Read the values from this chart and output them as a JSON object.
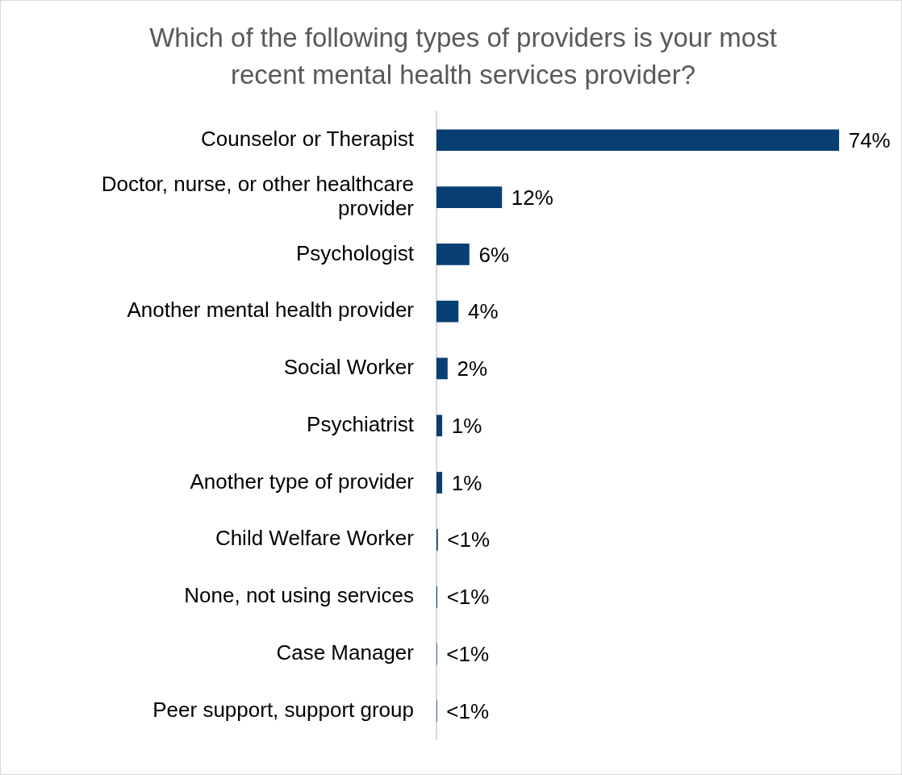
{
  "chart_data": {
    "type": "bar",
    "orientation": "horizontal",
    "title": "Which of the following types of providers is your most recent mental health services provider?",
    "categories": [
      "Counselor or Therapist",
      "Doctor, nurse, or other healthcare provider",
      "Psychologist",
      "Another mental health provider",
      "Social Worker",
      "Psychiatrist",
      "Another type of provider",
      "Child Welfare Worker",
      "None, not using services",
      "Case Manager",
      "Peer support, support group"
    ],
    "values": [
      74,
      12,
      6,
      4,
      2,
      1,
      1,
      0.2,
      0.1,
      0.05,
      0.05
    ],
    "value_labels": [
      "74%",
      "12%",
      "6%",
      "4%",
      "2%",
      "1%",
      "1%",
      "<1%",
      "<1%",
      "<1%",
      "<1%"
    ],
    "color": "#083f73",
    "legend": false
  }
}
